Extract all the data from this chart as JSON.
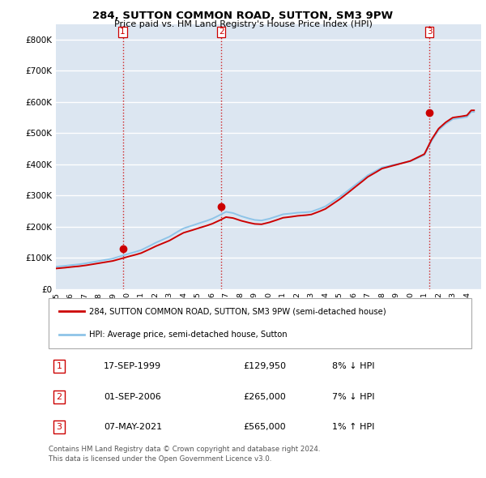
{
  "title1": "284, SUTTON COMMON ROAD, SUTTON, SM3 9PW",
  "title2": "Price paid vs. HM Land Registry's House Price Index (HPI)",
  "ylim": [
    0,
    850000
  ],
  "yticks": [
    0,
    100000,
    200000,
    300000,
    400000,
    500000,
    600000,
    700000,
    800000
  ],
  "ytick_labels": [
    "£0",
    "£100K",
    "£200K",
    "£300K",
    "£400K",
    "£500K",
    "£600K",
    "£700K",
    "£800K"
  ],
  "bg_color": "#dce6f1",
  "grid_color": "#ffffff",
  "sale_color": "#cc0000",
  "hpi_color": "#8ec4e8",
  "sale_dates_numeric": [
    1999.72,
    2006.67,
    2021.35
  ],
  "sale_prices": [
    129950,
    265000,
    565000
  ],
  "sale_hpi_values": [
    141000,
    285000,
    560000
  ],
  "legend_label1": "284, SUTTON COMMON ROAD, SUTTON, SM3 9PW (semi-detached house)",
  "legend_label2": "HPI: Average price, semi-detached house, Sutton",
  "table_data": [
    [
      "1",
      "17-SEP-1999",
      "£129,950",
      "8% ↓ HPI"
    ],
    [
      "2",
      "01-SEP-2006",
      "£265,000",
      "7% ↓ HPI"
    ],
    [
      "3",
      "07-MAY-2021",
      "£565,000",
      "1% ↑ HPI"
    ]
  ],
  "footnote": "Contains HM Land Registry data © Crown copyright and database right 2024.\nThis data is licensed under the Open Government Licence v3.0.",
  "hpi_years": [
    1995.0,
    1995.5,
    1996.0,
    1996.5,
    1997.0,
    1997.5,
    1998.0,
    1998.5,
    1999.0,
    1999.5,
    2000.0,
    2000.5,
    2001.0,
    2001.5,
    2002.0,
    2002.5,
    2003.0,
    2003.5,
    2004.0,
    2004.5,
    2005.0,
    2005.5,
    2006.0,
    2006.5,
    2007.0,
    2007.5,
    2008.0,
    2008.5,
    2009.0,
    2009.5,
    2010.0,
    2010.5,
    2011.0,
    2011.5,
    2012.0,
    2012.5,
    2013.0,
    2013.5,
    2014.0,
    2014.5,
    2015.0,
    2015.5,
    2016.0,
    2016.5,
    2017.0,
    2017.5,
    2018.0,
    2018.5,
    2019.0,
    2019.5,
    2020.0,
    2020.5,
    2021.0,
    2021.5,
    2022.0,
    2022.5,
    2023.0,
    2023.5,
    2024.0,
    2024.3
  ],
  "hpi_values": [
    72000,
    74000,
    77000,
    79000,
    82000,
    86000,
    90000,
    94000,
    98000,
    105000,
    112000,
    118000,
    125000,
    136000,
    148000,
    158000,
    168000,
    182000,
    195000,
    202000,
    210000,
    217000,
    225000,
    236000,
    248000,
    244000,
    235000,
    228000,
    222000,
    220000,
    225000,
    232000,
    240000,
    242000,
    245000,
    246000,
    248000,
    256000,
    265000,
    280000,
    295000,
    312000,
    330000,
    347000,
    365000,
    377000,
    390000,
    395000,
    400000,
    405000,
    410000,
    420000,
    430000,
    475000,
    510000,
    530000,
    545000,
    548000,
    552000,
    568000
  ],
  "xlim_start": 1995,
  "xlim_end": 2025
}
